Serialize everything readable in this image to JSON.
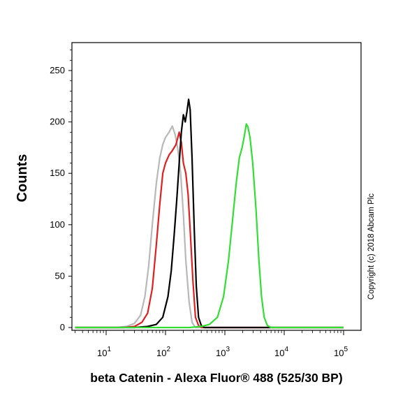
{
  "chart_data": {
    "type": "line",
    "title": "",
    "xlabel": "beta Catenin - Alexa Fluor® 488 (525/30 BP)",
    "ylabel": "Counts",
    "x_scale": "log",
    "xlim": [
      3,
      100000
    ],
    "ylim": [
      0,
      275
    ],
    "x_ticks": [
      {
        "mantissa": "10",
        "exp": "1"
      },
      {
        "mantissa": "10",
        "exp": "2"
      },
      {
        "mantissa": "10",
        "exp": "3"
      },
      {
        "mantissa": "10",
        "exp": "4"
      },
      {
        "mantissa": "10",
        "exp": "5"
      }
    ],
    "y_ticks": [
      "0",
      "50",
      "100",
      "150",
      "200",
      "250"
    ],
    "grid": false,
    "legend": "none",
    "series": [
      {
        "color": "#b8b8b8",
        "points": [
          [
            3,
            0
          ],
          [
            15,
            0
          ],
          [
            22,
            1
          ],
          [
            30,
            4
          ],
          [
            38,
            12
          ],
          [
            45,
            30
          ],
          [
            52,
            60
          ],
          [
            60,
            100
          ],
          [
            70,
            140
          ],
          [
            80,
            165
          ],
          [
            90,
            178
          ],
          [
            100,
            185
          ],
          [
            115,
            190
          ],
          [
            130,
            196
          ],
          [
            145,
            188
          ],
          [
            160,
            175
          ],
          [
            180,
            150
          ],
          [
            200,
            110
          ],
          [
            220,
            65
          ],
          [
            250,
            25
          ],
          [
            280,
            5
          ],
          [
            320,
            0
          ],
          [
            100000,
            0
          ]
        ]
      },
      {
        "color": "#e02020",
        "points": [
          [
            3,
            0
          ],
          [
            20,
            0
          ],
          [
            30,
            1
          ],
          [
            40,
            5
          ],
          [
            50,
            14
          ],
          [
            60,
            38
          ],
          [
            70,
            80
          ],
          [
            80,
            120
          ],
          [
            90,
            150
          ],
          [
            100,
            160
          ],
          [
            115,
            168
          ],
          [
            130,
            172
          ],
          [
            150,
            178
          ],
          [
            170,
            190
          ],
          [
            185,
            180
          ],
          [
            200,
            160
          ],
          [
            220,
            150
          ],
          [
            240,
            130
          ],
          [
            260,
            95
          ],
          [
            290,
            45
          ],
          [
            320,
            10
          ],
          [
            360,
            2
          ],
          [
            400,
            0
          ],
          [
            100000,
            0
          ]
        ]
      },
      {
        "color": "#000000",
        "points": [
          [
            3,
            0
          ],
          [
            30,
            0
          ],
          [
            50,
            1
          ],
          [
            70,
            3
          ],
          [
            90,
            10
          ],
          [
            110,
            30
          ],
          [
            125,
            55
          ],
          [
            140,
            90
          ],
          [
            155,
            125
          ],
          [
            170,
            160
          ],
          [
            185,
            190
          ],
          [
            200,
            207
          ],
          [
            215,
            200
          ],
          [
            230,
            210
          ],
          [
            245,
            222
          ],
          [
            260,
            212
          ],
          [
            280,
            165
          ],
          [
            305,
            95
          ],
          [
            330,
            40
          ],
          [
            360,
            10
          ],
          [
            400,
            2
          ],
          [
            450,
            0
          ],
          [
            100000,
            0
          ]
        ]
      },
      {
        "color": "#33dd33",
        "points": [
          [
            3,
            0
          ],
          [
            250,
            0
          ],
          [
            400,
            1
          ],
          [
            550,
            3
          ],
          [
            750,
            10
          ],
          [
            950,
            30
          ],
          [
            1150,
            65
          ],
          [
            1350,
            105
          ],
          [
            1550,
            140
          ],
          [
            1750,
            165
          ],
          [
            1950,
            175
          ],
          [
            2150,
            188
          ],
          [
            2300,
            198
          ],
          [
            2450,
            195
          ],
          [
            2650,
            185
          ],
          [
            2950,
            160
          ],
          [
            3350,
            115
          ],
          [
            3750,
            65
          ],
          [
            4150,
            30
          ],
          [
            4600,
            10
          ],
          [
            5200,
            2
          ],
          [
            6000,
            0
          ],
          [
            100000,
            0
          ]
        ]
      }
    ]
  },
  "copyright": "Copyright (c) 2018 Abcam Plc"
}
